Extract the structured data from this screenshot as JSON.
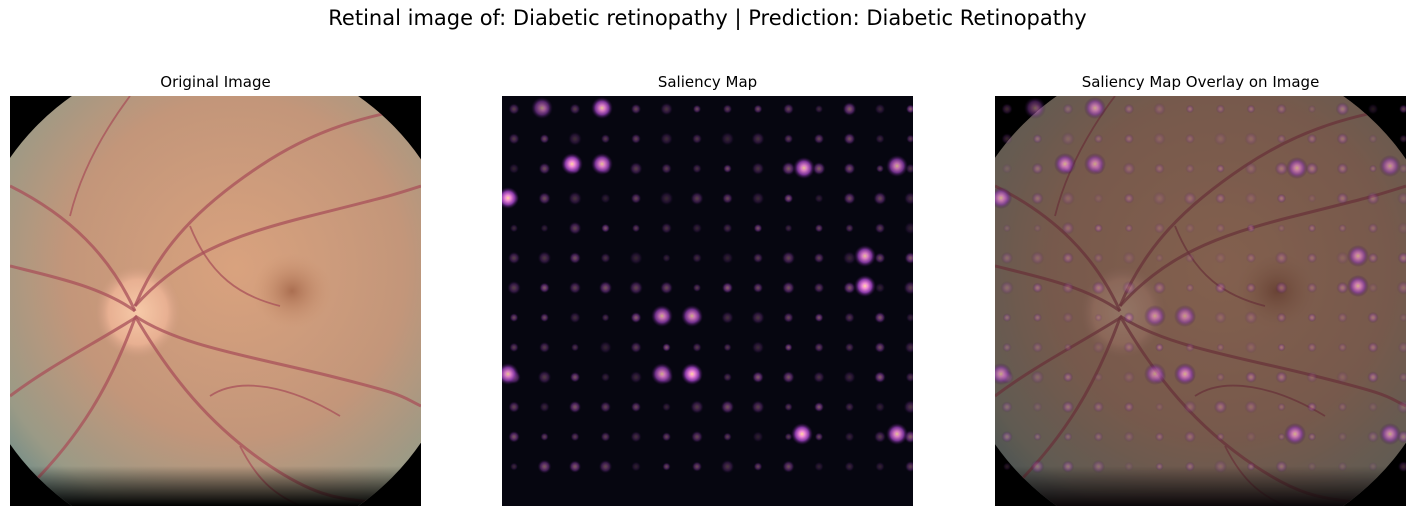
{
  "figure": {
    "suptitle": "Retinal image of: Diabetic retinopathy | Prediction: Diabetic Retinopathy"
  },
  "panels": [
    {
      "title": "Original Image",
      "content": "fundus-photo"
    },
    {
      "title": "Saliency Map",
      "content": "saliency-heatmap",
      "colormap": "magma"
    },
    {
      "title": "Saliency Map Overlay on Image",
      "content": "fundus-with-saliency-overlay"
    }
  ],
  "colors": {
    "background": "#ffffff",
    "fundus_base": "#c89a78",
    "vessel": "#a8505a",
    "saliency_bg": "#060610",
    "saliency_hot": "#f0a0ff"
  }
}
